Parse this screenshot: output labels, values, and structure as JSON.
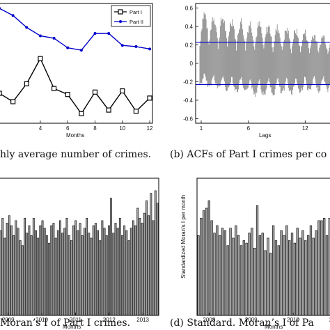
{
  "chart_data": [
    {
      "type": "line",
      "x": [
        1,
        2,
        3,
        4,
        5,
        6,
        7,
        8,
        9,
        10,
        11,
        12
      ],
      "xticks": [
        "4",
        "6",
        "8",
        "10",
        "12"
      ],
      "xlabel": "Months",
      "caption": "hly average number of crimes.",
      "legend": {
        "position": "top-right"
      },
      "series": [
        {
          "name": "Part I",
          "color": "#000000",
          "marker": "square",
          "values": [
            0.25,
            0.18,
            0.33,
            0.54,
            0.29,
            0.24,
            0.08,
            0.26,
            0.11,
            0.27,
            0.1,
            0.21
          ]
        },
        {
          "name": "Part II",
          "color": "#0000cc",
          "marker": "dot",
          "values": [
            0.96,
            0.9,
            0.8,
            0.73,
            0.71,
            0.63,
            0.61,
            0.75,
            0.75,
            0.65,
            0.64,
            0.62
          ]
        }
      ],
      "ylim": [
        0,
        1
      ]
    },
    {
      "type": "bar",
      "xlabel": "Lags",
      "xticks": [
        "1",
        "6",
        "12"
      ],
      "yticks": [
        "0.6",
        "0.4",
        "0.2",
        "0",
        "-0.2",
        "-0.4",
        "-0.6"
      ],
      "ylim": [
        -0.65,
        0.65
      ],
      "bands": [
        0.23,
        -0.23
      ],
      "band_color": "#0000cc",
      "bar_color": "#808080",
      "caption": "(b)  ACFs of Part I crimes per co",
      "note": "dense per-unit ACF bars; envelope approximate",
      "envelope_hi": [
        0.62,
        0.6,
        0.57,
        0.55,
        0.52,
        0.5,
        0.48,
        0.46,
        0.44,
        0.42,
        0.4,
        0.38,
        0.36,
        0.34,
        0.33
      ],
      "envelope_lo": [
        -0.25,
        -0.28,
        -0.3,
        -0.32,
        -0.34,
        -0.36,
        -0.38,
        -0.38,
        -0.37,
        -0.36,
        -0.35,
        -0.34,
        -0.33,
        -0.32,
        -0.31
      ]
    },
    {
      "type": "bar",
      "xlabel": "Months",
      "xticks": [
        "2009",
        "2010",
        "2011",
        "2012",
        "2013"
      ],
      "caption": "Moran’s I of Part I crimes.",
      "bar_color": "#a0a0a0",
      "values": [
        3.4,
        3.9,
        3.1,
        3.7,
        4.0,
        3.6,
        3.2,
        3.8,
        3.5,
        3.0,
        2.8,
        3.9,
        3.3,
        3.6,
        3.2,
        3.9,
        3.4,
        3.1,
        3.6,
        3.8,
        3.5,
        3.2,
        2.9,
        3.6,
        3.7,
        3.1,
        3.4,
        3.8,
        3.3,
        3.5,
        3.9,
        3.2,
        3.0,
        3.6,
        3.8,
        3.4,
        3.7,
        3.2,
        3.5,
        3.9,
        3.3,
        3.1,
        3.6,
        3.7,
        3.4,
        3.0,
        3.8,
        3.5,
        3.2,
        3.6,
        4.7,
        3.3,
        3.7,
        3.5,
        3.9,
        3.2,
        3.6,
        3.4,
        3.0,
        3.5,
        3.8,
        3.6,
        4.3,
        3.9,
        3.7,
        4.1,
        4.6,
        4.0,
        4.9,
        3.8,
        5.0,
        4.5
      ],
      "ylim": [
        0,
        5.5
      ]
    },
    {
      "type": "bar",
      "xlabel": "Months",
      "ylabel": "Standardized Moran’s I per month",
      "xticks": [
        "2008",
        "2009",
        "2010",
        "2011"
      ],
      "caption": "(d)  Standard.  Moran’s I of Pa",
      "bar_color": "#a0a0a0",
      "values": [
        3.2,
        3.9,
        4.2,
        4.3,
        4.6,
        3.8,
        3.3,
        3.6,
        3.2,
        3.5,
        3.4,
        2.8,
        3.5,
        3.1,
        3.6,
        3.2,
        2.8,
        3.0,
        2.9,
        3.3,
        3.5,
        2.7,
        4.4,
        3.2,
        3.3,
        2.6,
        3.1,
        2.5,
        3.6,
        3.0,
        2.8,
        3.4,
        3.2,
        3.6,
        3.0,
        3.3,
        2.9,
        3.5,
        3.1,
        3.4,
        3.0,
        3.2,
        3.6,
        3.1,
        3.4,
        3.8,
        3.8,
        3.9,
        3.2,
        3.9,
        3.6,
        3.3
      ],
      "ylim": [
        0,
        5.5
      ]
    }
  ]
}
